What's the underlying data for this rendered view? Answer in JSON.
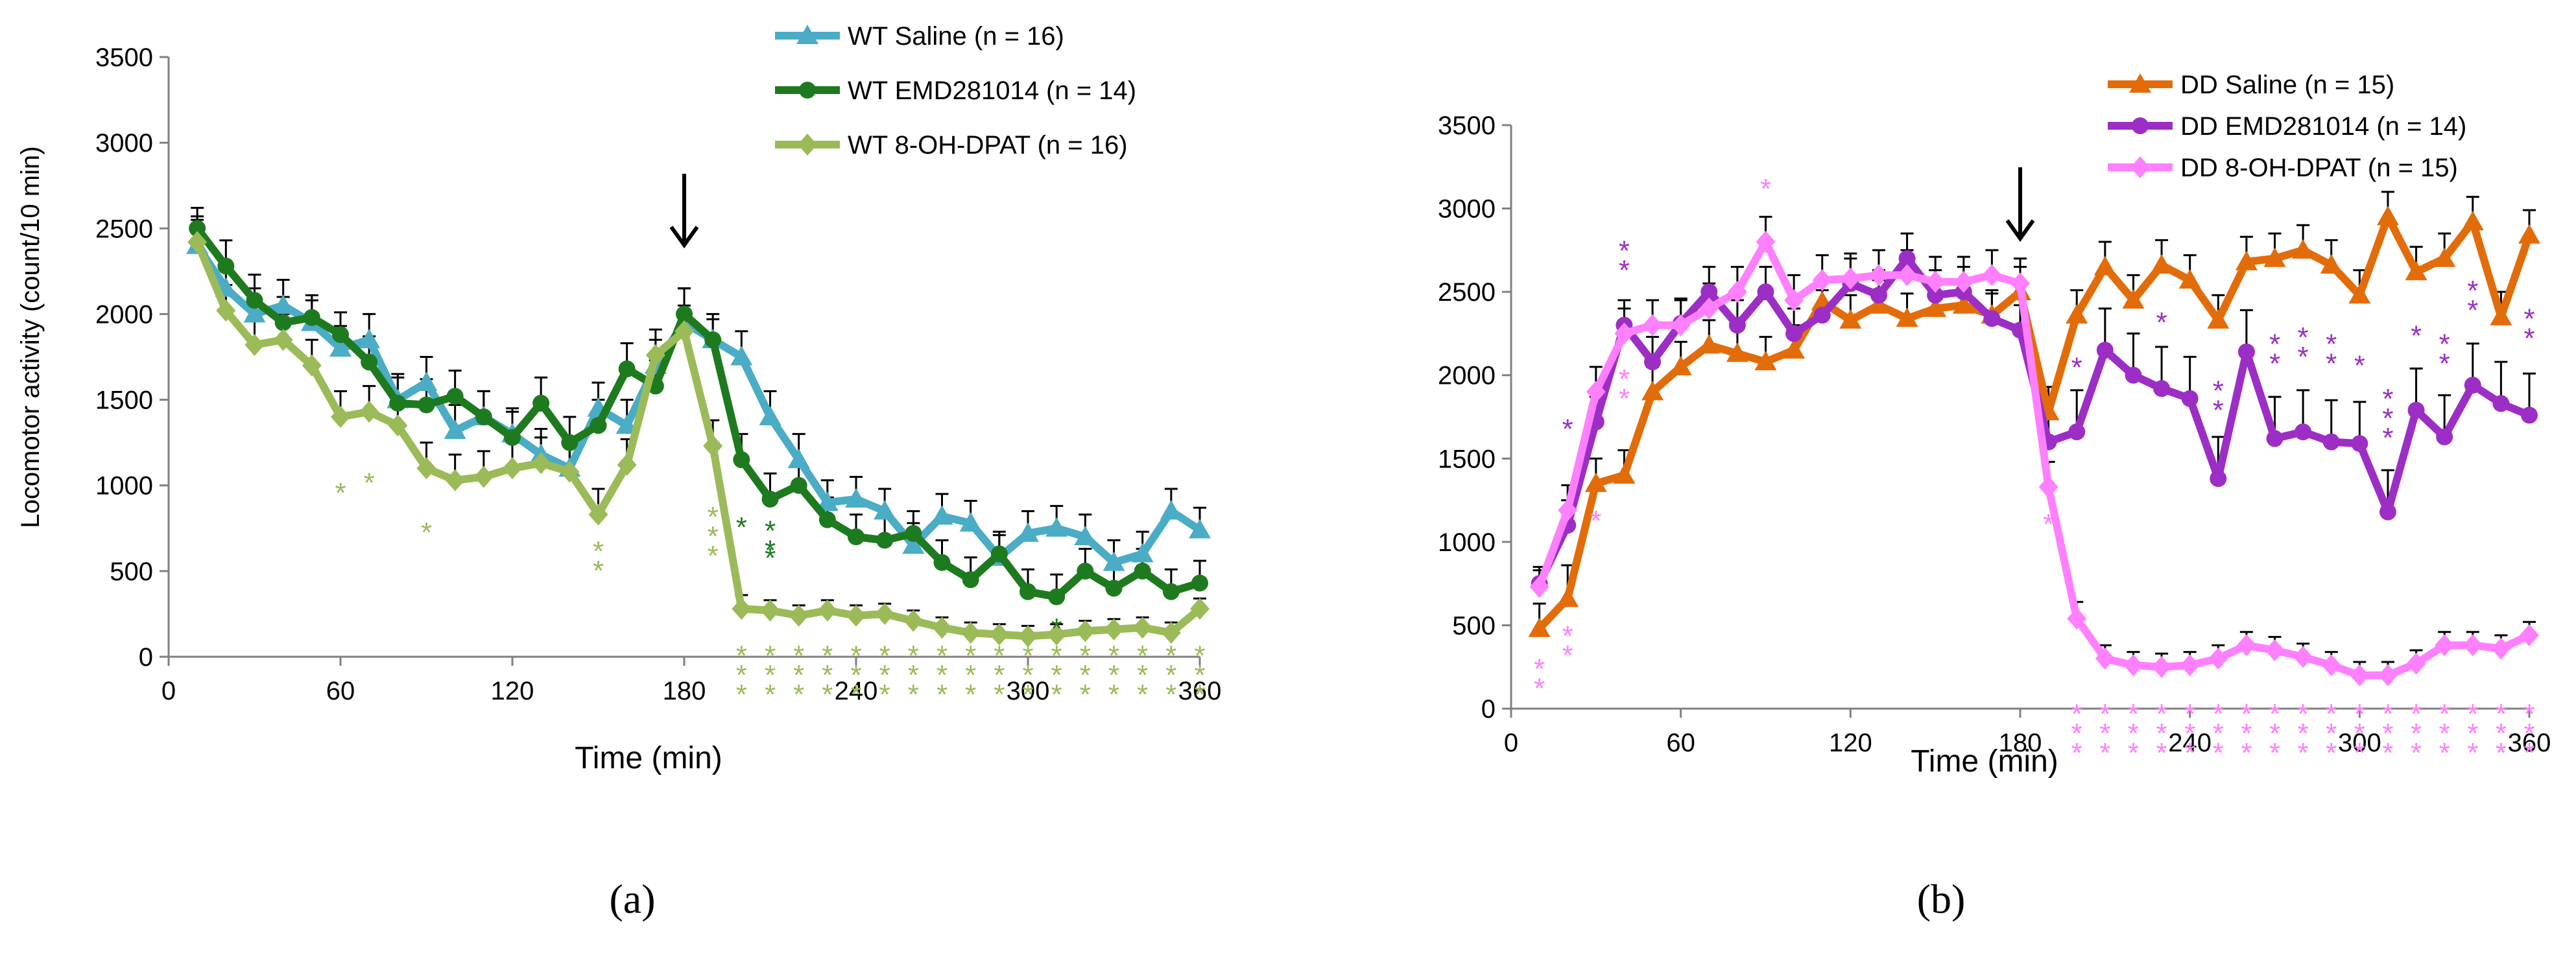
{
  "chart_data": [
    {
      "id": "a",
      "type": "line",
      "panel_label": "(a)",
      "xlabel": "Time (min)",
      "ylabel": "Locomotor activity (count/10 min)",
      "xlim": [
        0,
        360
      ],
      "ylim": [
        0,
        3500
      ],
      "xticks": [
        0,
        60,
        120,
        180,
        240,
        300,
        360
      ],
      "yticks": [
        0,
        500,
        1000,
        1500,
        2000,
        2500,
        3000,
        3500
      ],
      "arrow_at_x": 180,
      "x": [
        10,
        20,
        30,
        40,
        50,
        60,
        70,
        80,
        90,
        100,
        110,
        120,
        130,
        140,
        150,
        160,
        170,
        180,
        190,
        200,
        210,
        220,
        230,
        240,
        250,
        260,
        270,
        280,
        290,
        300,
        310,
        320,
        330,
        340,
        350,
        360
      ],
      "legend_position": "top-right",
      "series": [
        {
          "name": "WT Saline (n = 16)",
          "color": "#4BACC6",
          "marker": "triangle",
          "values": [
            2400,
            2150,
            2000,
            2050,
            1950,
            1800,
            1850,
            1500,
            1600,
            1320,
            1400,
            1300,
            1180,
            1100,
            1450,
            1350,
            1700,
            1950,
            1850,
            1750,
            1400,
            1150,
            900,
            920,
            850,
            650,
            820,
            780,
            580,
            720,
            750,
            700,
            550,
            600,
            850,
            740
          ],
          "errors": [
            150,
            150,
            150,
            150,
            130,
            130,
            150,
            150,
            150,
            150,
            150,
            150,
            150,
            150,
            150,
            150,
            150,
            200,
            150,
            150,
            150,
            150,
            130,
            130,
            130,
            130,
            130,
            130,
            130,
            130,
            130,
            130,
            130,
            130,
            130,
            130
          ]
        },
        {
          "name": "WT EMD281014 (n = 14)",
          "color": "#1E7A1E",
          "marker": "circle",
          "values": [
            2500,
            2280,
            2080,
            1950,
            1980,
            1880,
            1720,
            1480,
            1470,
            1520,
            1400,
            1280,
            1480,
            1250,
            1350,
            1680,
            1580,
            2000,
            1850,
            1150,
            920,
            1000,
            800,
            700,
            680,
            720,
            550,
            450,
            600,
            380,
            350,
            500,
            400,
            500,
            380,
            430
          ],
          "errors": [
            120,
            150,
            150,
            150,
            130,
            130,
            150,
            150,
            150,
            150,
            150,
            150,
            150,
            150,
            150,
            150,
            150,
            150,
            120,
            150,
            150,
            130,
            130,
            130,
            130,
            130,
            130,
            130,
            130,
            130,
            130,
            130,
            130,
            130,
            130,
            130
          ]
        },
        {
          "name": "WT 8-OH-DPAT (n = 16)",
          "color": "#9BBB59",
          "marker": "diamond",
          "values": [
            2420,
            2020,
            1820,
            1850,
            1700,
            1400,
            1430,
            1350,
            1100,
            1030,
            1050,
            1100,
            1130,
            1080,
            830,
            1120,
            1760,
            1900,
            1230,
            280,
            270,
            240,
            270,
            240,
            250,
            210,
            170,
            140,
            130,
            120,
            130,
            150,
            160,
            170,
            140,
            280
          ],
          "errors": [
            150,
            150,
            150,
            150,
            150,
            150,
            150,
            150,
            150,
            150,
            150,
            150,
            150,
            150,
            150,
            150,
            150,
            150,
            150,
            80,
            60,
            60,
            60,
            60,
            60,
            60,
            60,
            60,
            60,
            60,
            60,
            60,
            60,
            60,
            60,
            60
          ]
        }
      ],
      "stars": [
        {
          "x": 60,
          "y": 900,
          "n": 1,
          "color": "#9BBB59"
        },
        {
          "x": 70,
          "y": 960,
          "n": 1,
          "color": "#9BBB59"
        },
        {
          "x": 90,
          "y": 670,
          "n": 1,
          "color": "#9BBB59"
        },
        {
          "x": 150,
          "y": 560,
          "n": 2,
          "color": "#9BBB59"
        },
        {
          "x": 190,
          "y": 760,
          "n": 3,
          "color": "#9BBB59"
        },
        {
          "x": 200,
          "y": 700,
          "n": 1,
          "color": "#1E7A1E"
        },
        {
          "x": 210,
          "y": 680,
          "n": 2,
          "color": "#1E7A1E"
        },
        {
          "x": 210,
          "y": 520,
          "n": 1,
          "color": "#1E7A1E"
        },
        {
          "x": 200,
          "y": -50,
          "n": 3,
          "color": "#9BBB59"
        },
        {
          "x": 210,
          "y": -50,
          "n": 3,
          "color": "#9BBB59"
        },
        {
          "x": 220,
          "y": -50,
          "n": 3,
          "color": "#9BBB59"
        },
        {
          "x": 230,
          "y": -50,
          "n": 3,
          "color": "#9BBB59"
        },
        {
          "x": 240,
          "y": -50,
          "n": 3,
          "color": "#9BBB59"
        },
        {
          "x": 250,
          "y": -50,
          "n": 3,
          "color": "#9BBB59"
        },
        {
          "x": 260,
          "y": -50,
          "n": 3,
          "color": "#9BBB59"
        },
        {
          "x": 270,
          "y": -50,
          "n": 3,
          "color": "#9BBB59"
        },
        {
          "x": 280,
          "y": -50,
          "n": 3,
          "color": "#9BBB59"
        },
        {
          "x": 290,
          "y": -50,
          "n": 3,
          "color": "#9BBB59"
        },
        {
          "x": 300,
          "y": -50,
          "n": 3,
          "color": "#9BBB59"
        },
        {
          "x": 310,
          "y": -50,
          "n": 3,
          "color": "#9BBB59"
        },
        {
          "x": 320,
          "y": -50,
          "n": 3,
          "color": "#9BBB59"
        },
        {
          "x": 330,
          "y": -50,
          "n": 3,
          "color": "#9BBB59"
        },
        {
          "x": 340,
          "y": -50,
          "n": 3,
          "color": "#9BBB59"
        },
        {
          "x": 350,
          "y": -50,
          "n": 3,
          "color": "#9BBB59"
        },
        {
          "x": 360,
          "y": -50,
          "n": 3,
          "color": "#9BBB59"
        },
        {
          "x": 310,
          "y": 110,
          "n": 1,
          "color": "#1E7A1E"
        }
      ]
    },
    {
      "id": "b",
      "type": "line",
      "panel_label": "(b)",
      "xlabel": "Time (min)",
      "ylabel": "",
      "xlim": [
        0,
        360
      ],
      "ylim": [
        0,
        3500
      ],
      "xticks": [
        0,
        60,
        120,
        180,
        240,
        300,
        360
      ],
      "yticks": [
        0,
        500,
        1000,
        1500,
        2000,
        2500,
        3000,
        3500
      ],
      "arrow_at_x": 180,
      "x": [
        10,
        20,
        30,
        40,
        50,
        60,
        70,
        80,
        90,
        100,
        110,
        120,
        130,
        140,
        150,
        160,
        170,
        180,
        190,
        200,
        210,
        220,
        230,
        240,
        250,
        260,
        270,
        280,
        290,
        300,
        310,
        320,
        330,
        340,
        350,
        360
      ],
      "legend_position": "top-right",
      "series": [
        {
          "name": "DD Saline (n = 15)",
          "color": "#E36C0A",
          "marker": "triangle",
          "values": [
            480,
            660,
            1350,
            1400,
            1900,
            2050,
            2180,
            2130,
            2080,
            2150,
            2440,
            2330,
            2420,
            2340,
            2400,
            2420,
            2360,
            2500,
            1780,
            2360,
            2650,
            2450,
            2660,
            2570,
            2330,
            2680,
            2700,
            2750,
            2660,
            2480,
            2950,
            2620,
            2700,
            2920,
            2350,
            2840
          ],
          "errors": [
            150,
            200,
            150,
            150,
            150,
            150,
            150,
            150,
            150,
            150,
            150,
            150,
            150,
            150,
            150,
            150,
            150,
            150,
            150,
            150,
            150,
            150,
            150,
            150,
            150,
            150,
            150,
            150,
            150,
            150,
            150,
            150,
            150,
            150,
            150,
            150
          ]
        },
        {
          "name": "DD EMD281014 (n = 14)",
          "color": "#9C2EC6",
          "marker": "circle",
          "values": [
            750,
            1100,
            1720,
            2300,
            2080,
            2310,
            2500,
            2300,
            2500,
            2250,
            2360,
            2550,
            2480,
            2700,
            2480,
            2500,
            2340,
            2270,
            1600,
            1660,
            2150,
            2000,
            1920,
            1860,
            1380,
            2140,
            1620,
            1660,
            1600,
            1590,
            1180,
            1790,
            1630,
            1940,
            1830,
            1760
          ],
          "errors": [
            100,
            150,
            150,
            150,
            150,
            150,
            150,
            150,
            150,
            150,
            150,
            150,
            150,
            150,
            150,
            150,
            150,
            150,
            150,
            250,
            250,
            250,
            250,
            250,
            250,
            250,
            250,
            250,
            250,
            250,
            250,
            250,
            250,
            250,
            250,
            250
          ]
        },
        {
          "name": "DD 8-OH-DPAT (n = 15)",
          "color": "#FF80FF",
          "marker": "diamond",
          "values": [
            730,
            1190,
            1900,
            2250,
            2300,
            2300,
            2400,
            2500,
            2800,
            2450,
            2570,
            2580,
            2600,
            2600,
            2560,
            2560,
            2600,
            2550,
            1330,
            540,
            300,
            260,
            250,
            260,
            300,
            380,
            350,
            310,
            260,
            200,
            200,
            270,
            380,
            380,
            360,
            440
          ],
          "errors": [
            100,
            150,
            150,
            150,
            150,
            150,
            150,
            150,
            150,
            150,
            150,
            150,
            150,
            150,
            150,
            150,
            150,
            150,
            150,
            100,
            80,
            80,
            80,
            80,
            80,
            80,
            80,
            80,
            80,
            80,
            80,
            80,
            80,
            80,
            80,
            80
          ]
        }
      ],
      "stars": [
        {
          "x": 10,
          "y": 180,
          "n": 2,
          "color": "#FF80FF"
        },
        {
          "x": 20,
          "y": 380,
          "n": 2,
          "color": "#FF80FF"
        },
        {
          "x": 20,
          "y": 1620,
          "n": 1,
          "color": "#9C2EC6"
        },
        {
          "x": 30,
          "y": 1070,
          "n": 1,
          "color": "#FF80FF"
        },
        {
          "x": 40,
          "y": 2690,
          "n": 2,
          "color": "#9C2EC6"
        },
        {
          "x": 40,
          "y": 1920,
          "n": 2,
          "color": "#FF80FF"
        },
        {
          "x": 90,
          "y": 3060,
          "n": 1,
          "color": "#FF80FF"
        },
        {
          "x": 190,
          "y": 1050,
          "n": 1,
          "color": "#FF80FF"
        },
        {
          "x": 200,
          "y": 1990,
          "n": 1,
          "color": "#9C2EC6"
        },
        {
          "x": 230,
          "y": 2260,
          "n": 1,
          "color": "#9C2EC6"
        },
        {
          "x": 250,
          "y": 1850,
          "n": 2,
          "color": "#9C2EC6"
        },
        {
          "x": 270,
          "y": 2130,
          "n": 2,
          "color": "#9C2EC6"
        },
        {
          "x": 280,
          "y": 2170,
          "n": 2,
          "color": "#9C2EC6"
        },
        {
          "x": 290,
          "y": 2130,
          "n": 2,
          "color": "#9C2EC6"
        },
        {
          "x": 300,
          "y": 2000,
          "n": 1,
          "color": "#9C2EC6"
        },
        {
          "x": 310,
          "y": 1800,
          "n": 3,
          "color": "#9C2EC6"
        },
        {
          "x": 320,
          "y": 2180,
          "n": 1,
          "color": "#9C2EC6"
        },
        {
          "x": 330,
          "y": 2130,
          "n": 2,
          "color": "#9C2EC6"
        },
        {
          "x": 340,
          "y": 2450,
          "n": 2,
          "color": "#9C2EC6"
        },
        {
          "x": 360,
          "y": 2280,
          "n": 2,
          "color": "#9C2EC6"
        },
        {
          "x": 200,
          "y": -90,
          "n": 3,
          "color": "#FF80FF"
        },
        {
          "x": 210,
          "y": -90,
          "n": 3,
          "color": "#FF80FF"
        },
        {
          "x": 220,
          "y": -90,
          "n": 3,
          "color": "#FF80FF"
        },
        {
          "x": 230,
          "y": -90,
          "n": 3,
          "color": "#FF80FF"
        },
        {
          "x": 240,
          "y": -90,
          "n": 3,
          "color": "#FF80FF"
        },
        {
          "x": 250,
          "y": -90,
          "n": 3,
          "color": "#FF80FF"
        },
        {
          "x": 260,
          "y": -90,
          "n": 3,
          "color": "#FF80FF"
        },
        {
          "x": 270,
          "y": -90,
          "n": 3,
          "color": "#FF80FF"
        },
        {
          "x": 280,
          "y": -90,
          "n": 3,
          "color": "#FF80FF"
        },
        {
          "x": 290,
          "y": -90,
          "n": 3,
          "color": "#FF80FF"
        },
        {
          "x": 300,
          "y": -90,
          "n": 3,
          "color": "#FF80FF"
        },
        {
          "x": 310,
          "y": -90,
          "n": 3,
          "color": "#FF80FF"
        },
        {
          "x": 320,
          "y": -90,
          "n": 3,
          "color": "#FF80FF"
        },
        {
          "x": 330,
          "y": -90,
          "n": 3,
          "color": "#FF80FF"
        },
        {
          "x": 340,
          "y": -90,
          "n": 3,
          "color": "#FF80FF"
        },
        {
          "x": 350,
          "y": -90,
          "n": 3,
          "color": "#FF80FF"
        },
        {
          "x": 360,
          "y": -90,
          "n": 3,
          "color": "#FF80FF"
        }
      ]
    }
  ]
}
